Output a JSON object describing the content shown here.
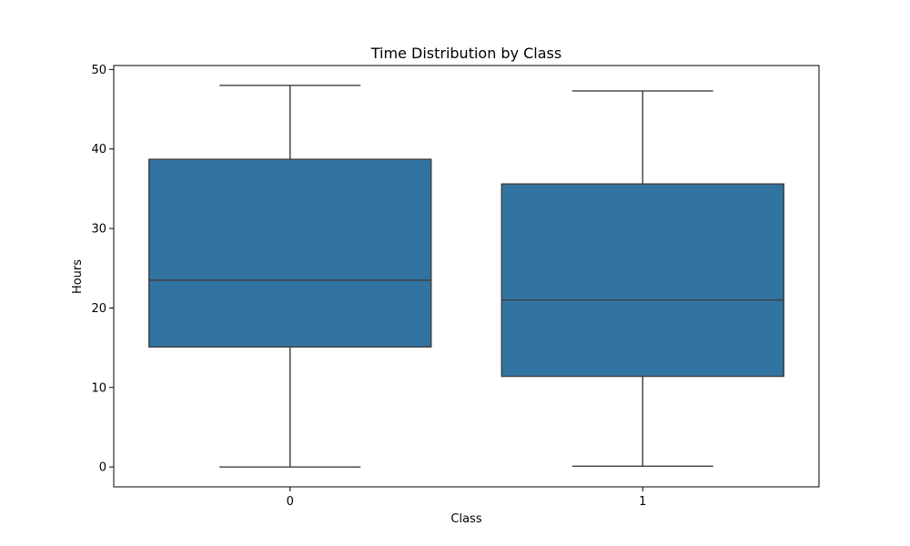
{
  "chart_data": {
    "type": "box",
    "title": "Time Distribution by Class",
    "xlabel": "Class",
    "ylabel": "Hours",
    "categories": [
      "0",
      "1"
    ],
    "ylim": [
      -2.5,
      50.5
    ],
    "yticks": [
      0,
      10,
      20,
      30,
      40,
      50
    ],
    "grid": false,
    "legend": "none",
    "color": "#3274a1",
    "boxes": [
      {
        "category": "0",
        "whisker_low": 0.0,
        "q1": 15.1,
        "median": 23.5,
        "q3": 38.7,
        "whisker_high": 48.0
      },
      {
        "category": "1",
        "whisker_low": 0.1,
        "q1": 11.4,
        "median": 21.0,
        "q3": 35.6,
        "whisker_high": 47.3
      }
    ]
  }
}
